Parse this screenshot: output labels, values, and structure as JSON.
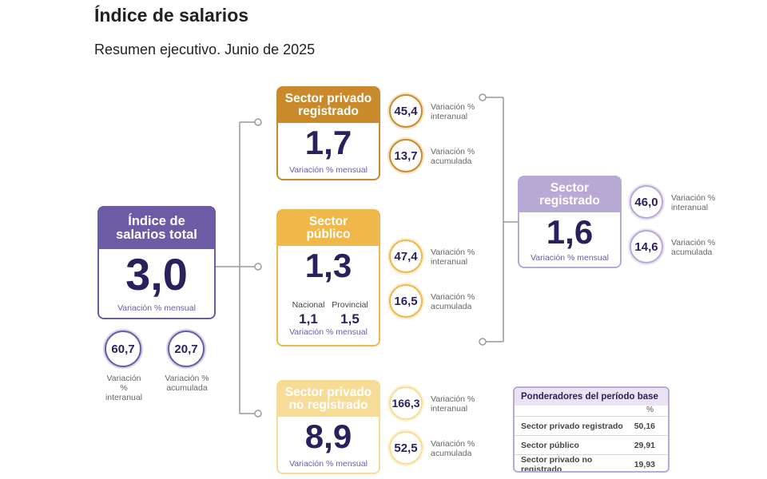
{
  "title": "Índice de salarios",
  "subtitle": "Resumen ejecutivo. Junio de 2025",
  "total": {
    "head": "Índice de salarios total",
    "value": "3,0",
    "sub": "Variación % mensual",
    "interanual": "60,7",
    "interanual_label": "Variación % interanual",
    "acumulada": "20,7",
    "acumulada_label": "Variación % acumulada"
  },
  "privado_registrado": {
    "head": "Sector privado registrado",
    "value": "1,7",
    "sub": "Variación % mensual",
    "interanual": "45,4",
    "interanual_label": "Variación % interanual",
    "acumulada": "13,7",
    "acumulada_label": "Variación % acumulada"
  },
  "publico": {
    "head": "Sector público",
    "value": "1,3",
    "sub": "Variación % mensual",
    "nacional_label": "Nacional",
    "nacional_value": "1,1",
    "provincial_label": "Provincial",
    "provincial_value": "1,5",
    "interanual": "47,4",
    "interanual_label": "Variación % interanual",
    "acumulada": "16,5",
    "acumulada_label": "Variación % acumulada"
  },
  "privado_no_registrado": {
    "head": "Sector privado no registrado",
    "value": "8,9",
    "sub": "Variación % mensual",
    "interanual": "166,3",
    "interanual_label": "Variación % interanual",
    "acumulada": "52,5",
    "acumulada_label": "Variación % acumulada"
  },
  "registrado": {
    "head": "Sector registrado",
    "value": "1,6",
    "sub": "Variación % mensual",
    "interanual": "46,0",
    "interanual_label": "Variación % interanual",
    "acumulada": "14,6",
    "acumulada_label": "Variación % acumulada"
  },
  "weights": {
    "title": "Ponderadores del período base",
    "unit": "%",
    "rows": [
      {
        "label": "Sector privado registrado",
        "value": "50,16"
      },
      {
        "label": "Sector público",
        "value": "29,91"
      },
      {
        "label": "Sector privado no registrado",
        "value": "19,93"
      }
    ]
  },
  "colors": {
    "total": "#6b5ca5",
    "privado_registrado": "#c98a2b",
    "publico": "#f0b84a",
    "privado_no_registrado": "#f6dc97",
    "registrado": "#b8a9d6"
  }
}
